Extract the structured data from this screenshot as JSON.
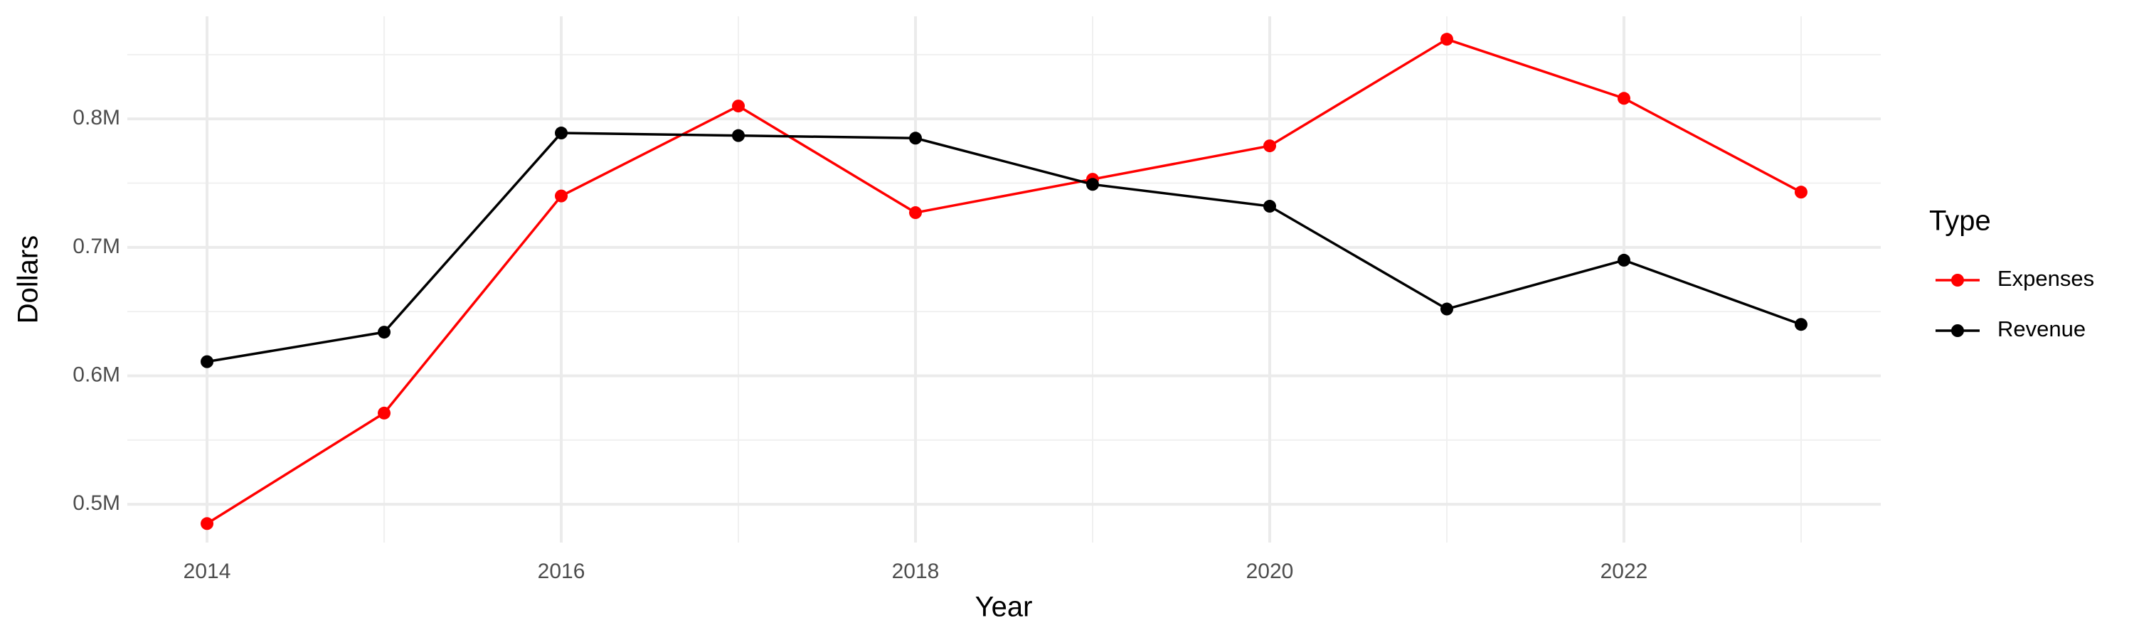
{
  "chart_data": {
    "type": "line",
    "x_label": "Year",
    "y_label": "Dollars",
    "legend_title": "Type",
    "legend": "right",
    "grid": true,
    "x": [
      2014,
      2015,
      2016,
      2017,
      2018,
      2019,
      2020,
      2021,
      2022,
      2023
    ],
    "series": [
      {
        "name": "Expenses",
        "color": "#ff0000",
        "values": [
          485000,
          571000,
          740000,
          810000,
          727000,
          753000,
          779000,
          862000,
          816000,
          743000
        ]
      },
      {
        "name": "Revenue",
        "color": "#000000",
        "values": [
          611000,
          634000,
          789000,
          787000,
          785000,
          749000,
          732000,
          652000,
          690000,
          640000
        ]
      }
    ],
    "xlim": [
      2013.55,
      2023.45
    ],
    "xticks": [
      2014,
      2016,
      2018,
      2020,
      2022
    ],
    "ylim": [
      470200,
      879800
    ],
    "yticks": [
      {
        "value": 500000,
        "label": "0.5M"
      },
      {
        "value": 600000,
        "label": "0.6M"
      },
      {
        "value": 700000,
        "label": "0.7M"
      },
      {
        "value": 800000,
        "label": "0.8M"
      }
    ]
  }
}
